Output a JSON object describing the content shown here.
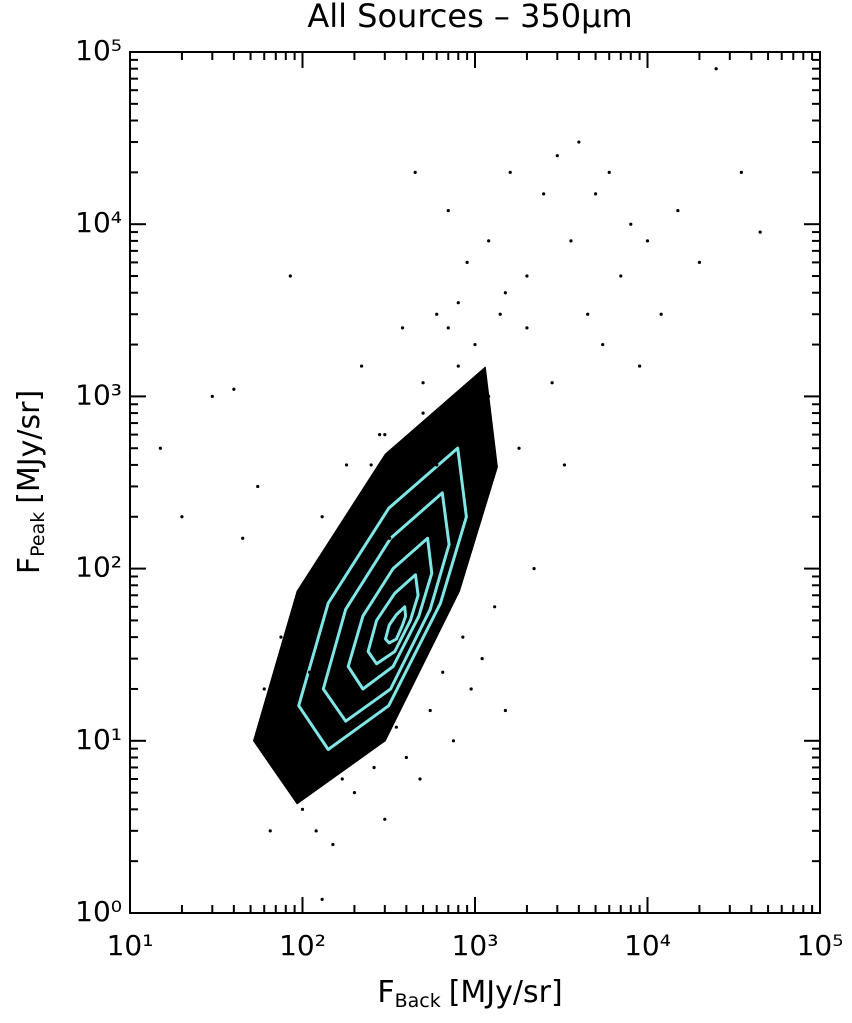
{
  "chart_data": {
    "type": "scatter",
    "title": "All Sources – 350μm",
    "xlabel": {
      "symbol": "F",
      "subscript": "Back",
      "unit": "[MJy/sr]"
    },
    "ylabel": {
      "symbol": "F",
      "subscript": "Peak",
      "unit": "[MJy/sr]"
    },
    "xlog": true,
    "ylog": true,
    "minor_ticks": true,
    "xlim": [
      10,
      100000
    ],
    "ylim": [
      1,
      100000
    ],
    "xticks": [
      {
        "value": 10,
        "label": "10¹"
      },
      {
        "value": 100,
        "label": "10²"
      },
      {
        "value": 1000,
        "label": "10³"
      },
      {
        "value": 10000,
        "label": "10⁴"
      },
      {
        "value": 100000,
        "label": "10⁵"
      }
    ],
    "yticks": [
      {
        "value": 1,
        "label": "10⁰"
      },
      {
        "value": 10,
        "label": "10¹"
      },
      {
        "value": 100,
        "label": "10²"
      },
      {
        "value": 1000,
        "label": "10³"
      },
      {
        "value": 10000,
        "label": "10⁴"
      },
      {
        "value": 100000,
        "label": "10⁵"
      }
    ],
    "point_color": "#000000",
    "x": [
      15,
      20,
      30,
      40,
      45,
      55,
      60,
      65,
      70,
      75,
      80,
      85,
      90,
      100,
      110,
      120,
      130,
      140,
      150,
      160,
      170,
      180,
      190,
      200,
      220,
      240,
      260,
      280,
      300,
      320,
      350,
      380,
      400,
      420,
      450,
      480,
      500,
      550,
      600,
      650,
      700,
      750,
      800,
      850,
      900,
      950,
      1000,
      1100,
      1200,
      1300,
      1400,
      1500,
      1600,
      1800,
      2000,
      2200,
      2500,
      2800,
      3000,
      3300,
      3600,
      4000,
      4500,
      5000,
      5500,
      6000,
      7000,
      8000,
      9000,
      10000,
      12000,
      15000,
      20000,
      25000,
      35000,
      45000,
      500,
      600,
      700,
      800,
      1000,
      1200,
      1500,
      2000,
      300,
      250,
      180,
      130,
      110,
      90,
      70
    ],
    "y": [
      500,
      200,
      1000,
      1100,
      150,
      300,
      20,
      3,
      8,
      40,
      6,
      5000,
      15,
      4,
      60,
      3,
      200,
      8,
      2.5,
      90,
      6,
      400,
      12,
      5,
      1500,
      30,
      7,
      600,
      3.5,
      150,
      12,
      2500,
      8,
      250,
      20000,
      6,
      800,
      15,
      3000,
      25,
      12000,
      10,
      1500,
      40,
      6000,
      20,
      2000,
      30,
      8000,
      60,
      3000,
      15,
      20000,
      500,
      5000,
      100,
      15000,
      1200,
      25000,
      400,
      8000,
      30000,
      3000,
      15000,
      2000,
      20000,
      5000,
      10000,
      1500,
      8000,
      3000,
      12000,
      6000,
      80000,
      20000,
      9000,
      1200,
      400,
      2500,
      3500,
      900,
      1000,
      4000,
      2500,
      600,
      400,
      40,
      1.2,
      25,
      7,
      15
    ],
    "contours": [
      {
        "color": "#000000",
        "fill": "#000000",
        "x": [
          1148,
          1349,
          813,
          302,
          93,
          52,
          93,
          302
        ],
        "y": [
          1479,
          389,
          74,
          10,
          4.3,
          10,
          74,
          462
        ]
      },
      {
        "color": "#7fe5e5",
        "x": [
          794,
          891,
          631,
          316,
          141,
          95,
          141,
          316
        ],
        "y": [
          501,
          200,
          63,
          16,
          8.9,
          16,
          63,
          224
        ]
      },
      {
        "color": "#7fe5e5",
        "x": [
          646,
          708,
          550,
          324,
          178,
          132,
          178,
          324
        ],
        "y": [
          275,
          138,
          58,
          20,
          13,
          20,
          58,
          150
        ]
      },
      {
        "color": "#7fe5e5",
        "x": [
          531,
          562,
          473,
          335,
          224,
          184,
          224,
          335
        ],
        "y": [
          150,
          94,
          53,
          27,
          20,
          27,
          53,
          100
        ]
      },
      {
        "color": "#7fe5e5",
        "x": [
          452,
          468,
          422,
          343,
          269,
          240,
          269,
          343
        ],
        "y": [
          92,
          70,
          50,
          33,
          28,
          33,
          50,
          72
        ]
      },
      {
        "color": "#7fe5e5",
        "x": [
          391,
          396,
          380,
          350,
          318,
          303,
          318,
          350
        ],
        "y": [
          60,
          53,
          47,
          39,
          37,
          39,
          47,
          54
        ]
      }
    ]
  }
}
